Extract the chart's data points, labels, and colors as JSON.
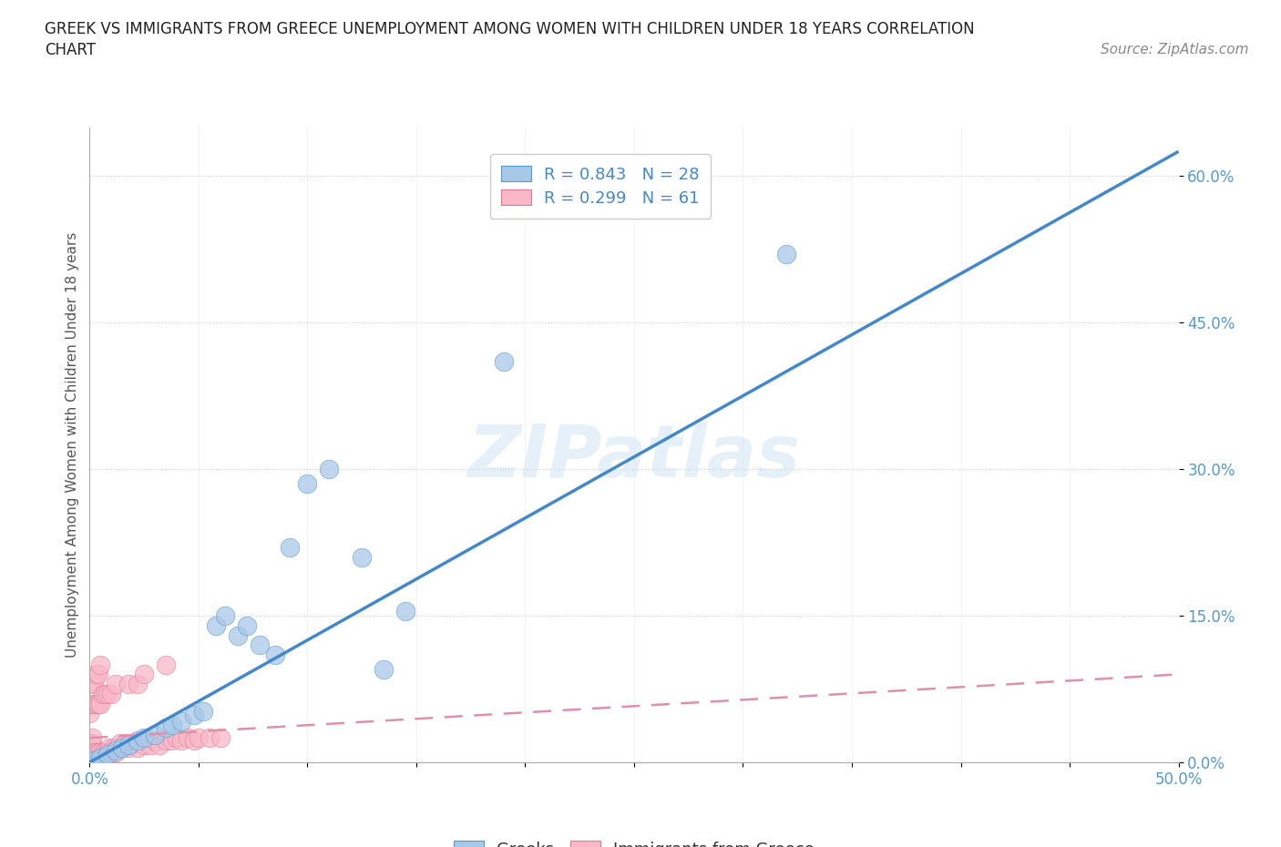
{
  "title_line1": "GREEK VS IMMIGRANTS FROM GREECE UNEMPLOYMENT AMONG WOMEN WITH CHILDREN UNDER 18 YEARS CORRELATION",
  "title_line2": "CHART",
  "source": "Source: ZipAtlas.com",
  "ylabel": "Unemployment Among Women with Children Under 18 years",
  "watermark": "ZIPatlas",
  "xlim": [
    0.0,
    0.5
  ],
  "ylim": [
    0.0,
    0.65
  ],
  "yticks": [
    0.0,
    0.15,
    0.3,
    0.45,
    0.6
  ],
  "ytick_labels": [
    "0.0%",
    "15.0%",
    "30.0%",
    "45.0%",
    "60.0%"
  ],
  "xtick_labels_show": [
    "0.0%",
    "50.0%"
  ],
  "greek_color": "#a8c8e8",
  "greek_edge_color": "#5599cc",
  "immigrant_color": "#f8b8c8",
  "immigrant_edge_color": "#e07898",
  "greek_line_color": "#4488cc",
  "immigrant_line_color": "#e090a8",
  "legend_blue_color": "#4488cc",
  "legend_pink_color": "#e07898",
  "greek_scatter_x": [
    0.002,
    0.005,
    0.008,
    0.012,
    0.015,
    0.018,
    0.022,
    0.025,
    0.03,
    0.035,
    0.038,
    0.042,
    0.048,
    0.052,
    0.058,
    0.062,
    0.068,
    0.072,
    0.078,
    0.085,
    0.092,
    0.1,
    0.11,
    0.125,
    0.135,
    0.145,
    0.19,
    0.32
  ],
  "greek_scatter_y": [
    0.002,
    0.005,
    0.008,
    0.012,
    0.015,
    0.018,
    0.022,
    0.025,
    0.028,
    0.035,
    0.038,
    0.042,
    0.048,
    0.052,
    0.14,
    0.15,
    0.13,
    0.14,
    0.12,
    0.11,
    0.22,
    0.285,
    0.3,
    0.21,
    0.095,
    0.155,
    0.41,
    0.52
  ],
  "immigrant_scatter_x": [
    0.0,
    0.0,
    0.0,
    0.0,
    0.0,
    0.0,
    0.0,
    0.001,
    0.001,
    0.001,
    0.001,
    0.001,
    0.002,
    0.002,
    0.002,
    0.002,
    0.003,
    0.003,
    0.003,
    0.004,
    0.004,
    0.004,
    0.005,
    0.005,
    0.005,
    0.006,
    0.006,
    0.007,
    0.007,
    0.008,
    0.008,
    0.009,
    0.01,
    0.01,
    0.011,
    0.012,
    0.012,
    0.013,
    0.014,
    0.015,
    0.016,
    0.018,
    0.018,
    0.02,
    0.022,
    0.022,
    0.025,
    0.025,
    0.028,
    0.03,
    0.032,
    0.035,
    0.035,
    0.038,
    0.04,
    0.042,
    0.045,
    0.048,
    0.05,
    0.055,
    0.06
  ],
  "immigrant_scatter_y": [
    0.005,
    0.01,
    0.015,
    0.02,
    0.05,
    0.06,
    0.08,
    0.005,
    0.01,
    0.015,
    0.02,
    0.025,
    0.005,
    0.01,
    0.06,
    0.08,
    0.01,
    0.06,
    0.09,
    0.01,
    0.06,
    0.09,
    0.01,
    0.06,
    0.1,
    0.01,
    0.07,
    0.01,
    0.07,
    0.01,
    0.07,
    0.015,
    0.01,
    0.07,
    0.015,
    0.01,
    0.08,
    0.015,
    0.02,
    0.015,
    0.02,
    0.015,
    0.08,
    0.02,
    0.015,
    0.08,
    0.018,
    0.09,
    0.018,
    0.022,
    0.018,
    0.022,
    0.1,
    0.022,
    0.025,
    0.022,
    0.025,
    0.022,
    0.025,
    0.025,
    0.025
  ],
  "greek_line_x": [
    0.0,
    0.5
  ],
  "greek_line_y": [
    0.0,
    0.625
  ],
  "immigrant_line_x": [
    0.0,
    0.5
  ],
  "immigrant_line_y": [
    0.02,
    0.095
  ]
}
